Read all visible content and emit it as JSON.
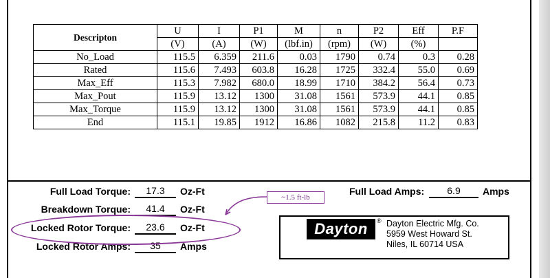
{
  "table": {
    "header": {
      "description": "Descripton",
      "columns": [
        {
          "symbol": "U",
          "unit": "(V)"
        },
        {
          "symbol": "I",
          "unit": "(A)"
        },
        {
          "symbol": "P1",
          "unit": "(W)"
        },
        {
          "symbol": "M",
          "unit": "(lbf.in)"
        },
        {
          "symbol": "n",
          "unit": "(rpm)"
        },
        {
          "symbol": "P2",
          "unit": "(W)"
        },
        {
          "symbol": "Eff",
          "unit": "(%)"
        },
        {
          "symbol": "P.F",
          "unit": ""
        }
      ]
    },
    "rows": [
      {
        "label": "No_Load",
        "values": [
          "115.5",
          "6.359",
          "211.6",
          "0.03",
          "1790",
          "0.74",
          "0.3",
          "0.28"
        ]
      },
      {
        "label": "Rated",
        "values": [
          "115.6",
          "7.493",
          "603.8",
          "16.28",
          "1725",
          "332.4",
          "55.0",
          "0.69"
        ]
      },
      {
        "label": "Max_Eff",
        "values": [
          "115.3",
          "7.982",
          "680.0",
          "18.99",
          "1710",
          "384.2",
          "56.4",
          "0.73"
        ]
      },
      {
        "label": "Max_Pout",
        "values": [
          "115.9",
          "13.12",
          "1300",
          "31.08",
          "1561",
          "573.9",
          "44.1",
          "0.85"
        ]
      },
      {
        "label": "Max_Torque",
        "values": [
          "115.9",
          "13.12",
          "1300",
          "31.08",
          "1561",
          "573.9",
          "44.1",
          "0.85"
        ]
      },
      {
        "label": "End",
        "values": [
          "115.1",
          "19.85",
          "1912",
          "16.86",
          "1082",
          "215.8",
          "11.2",
          "0.83"
        ]
      }
    ]
  },
  "specs": {
    "full_load_torque": {
      "label": "Full Load Torque:",
      "value": "17.3",
      "unit": "Oz-Ft"
    },
    "breakdown_torque": {
      "label": "Breakdown Torque:",
      "value": "41.4",
      "unit": "Oz-Ft"
    },
    "locked_rotor_torque": {
      "label": "Locked Rotor Torque:",
      "value": "23.6",
      "unit": "Oz-Ft"
    },
    "locked_rotor_amps": {
      "label": "Locked Rotor Amps:",
      "value": "35",
      "unit": "Amps"
    },
    "full_load_amps": {
      "label": "Full Load Amps:",
      "value": "6.9",
      "unit": "Amps"
    }
  },
  "annotation": {
    "note": "~1.5 ft-lb",
    "color": "#8a3a97"
  },
  "company": {
    "logo": "Dayton",
    "registered": "®",
    "name": "Dayton Electric Mfg. Co.",
    "street": "5959 West Howard St.",
    "city": "Niles, IL 60714   USA"
  }
}
